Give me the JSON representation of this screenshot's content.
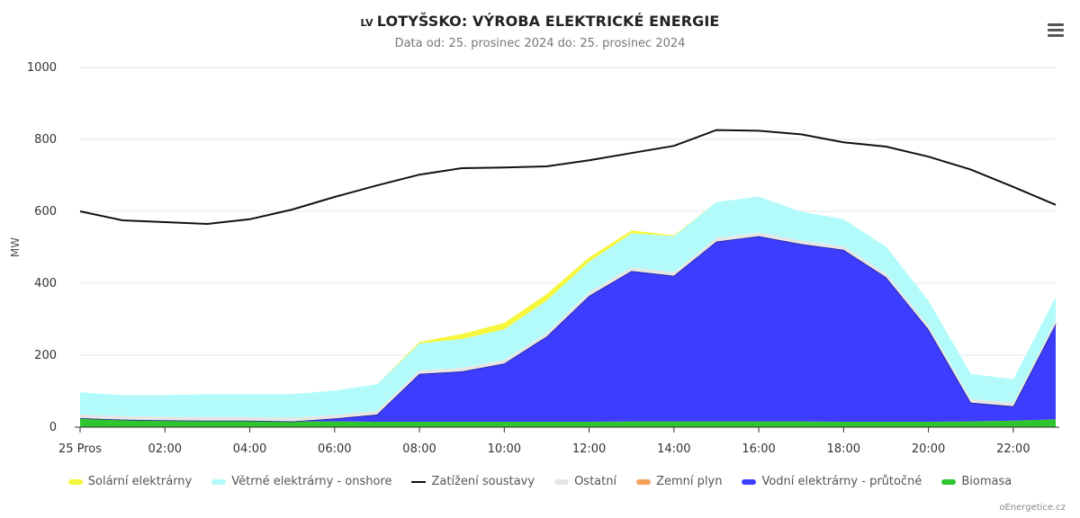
{
  "header": {
    "country_code": "LV",
    "title": "LOTYŠSKO: VÝROBA ELEKTRICKÉ ENERGIE",
    "subtitle": "Data od: 25. prosinec 2024 do: 25. prosinec 2024"
  },
  "credit": "oEnergetice.cz",
  "chart_data": {
    "type": "area",
    "ylabel": "MW",
    "ylim": [
      0,
      1000
    ],
    "yticks": [
      "0",
      "200",
      "400",
      "600",
      "800",
      "1000"
    ],
    "x": [
      0,
      1,
      2,
      3,
      4,
      5,
      6,
      7,
      8,
      9,
      10,
      11,
      12,
      13,
      14,
      15,
      16,
      17,
      18,
      19,
      20,
      21,
      22,
      23
    ],
    "xtick_labels": [
      "25 Pros",
      "02:00",
      "04:00",
      "06:00",
      "08:00",
      "10:00",
      "12:00",
      "14:00",
      "16:00",
      "18:00",
      "20:00",
      "22:00"
    ],
    "grid": true,
    "legend_position": "bottom",
    "stacked_series": [
      {
        "name": "Biomasa",
        "color": "#2fc52f",
        "values": [
          25,
          21,
          19,
          18,
          18,
          16,
          16,
          15,
          15,
          15,
          15,
          15,
          15,
          16,
          16,
          16,
          16,
          16,
          15,
          15,
          15,
          16,
          18,
          22
        ]
      },
      {
        "name": "Vodní elektrárny - průtočné",
        "color": "#3d3dff",
        "values": [
          0,
          0,
          0,
          0,
          0,
          0,
          8,
          20,
          133,
          140,
          162,
          237,
          350,
          418,
          405,
          500,
          515,
          493,
          478,
          402,
          257,
          52,
          40,
          265
        ]
      },
      {
        "name": "Zemní plyn",
        "color": "#f5a15a",
        "values": [
          0,
          0,
          0,
          0,
          0,
          0,
          0,
          0,
          0,
          0,
          0,
          0,
          0,
          0,
          0,
          0,
          0,
          0,
          0,
          0,
          0,
          0,
          0,
          0
        ]
      },
      {
        "name": "Ostatní",
        "color": "#e6e6e6",
        "values": [
          10,
          10,
          10,
          10,
          10,
          10,
          10,
          10,
          10,
          10,
          10,
          10,
          10,
          10,
          10,
          10,
          10,
          10,
          10,
          10,
          10,
          10,
          10,
          10
        ]
      },
      {
        "name": "Větrné elektrárny - onshore",
        "color": "#b3fbfb",
        "values": [
          62,
          58,
          60,
          64,
          64,
          66,
          68,
          74,
          75,
          80,
          85,
          90,
          85,
          95,
          100,
          100,
          100,
          80,
          75,
          75,
          70,
          70,
          65,
          65
        ]
      },
      {
        "name": "Solární elektrárny",
        "color": "#f6f63c",
        "values": [
          0,
          0,
          0,
          0,
          0,
          0,
          0,
          0,
          4,
          14,
          18,
          18,
          12,
          8,
          2,
          0,
          0,
          0,
          0,
          0,
          0,
          0,
          0,
          0
        ]
      }
    ],
    "load_series": {
      "name": "Zatížení soustavy",
      "color": "#111111",
      "values": [
        600,
        575,
        570,
        565,
        578,
        605,
        640,
        672,
        702,
        720,
        722,
        725,
        742,
        762,
        782,
        826,
        824,
        814,
        792,
        780,
        752,
        716,
        668,
        618
      ]
    }
  },
  "legend": [
    {
      "label": "Solární elektrárny",
      "color": "#f6f63c"
    },
    {
      "label": "Větrné elektrárny - onshore",
      "color": "#b3fbfb"
    },
    {
      "label": "Zatížení soustavy",
      "color": "#111111"
    },
    {
      "label": "Ostatní",
      "color": "#e6e6e6"
    },
    {
      "label": "Zemní plyn",
      "color": "#f5a15a"
    },
    {
      "label": "Vodní elektrárny - průtočné",
      "color": "#3d3dff"
    },
    {
      "label": "Biomasa",
      "color": "#2fc52f"
    }
  ]
}
